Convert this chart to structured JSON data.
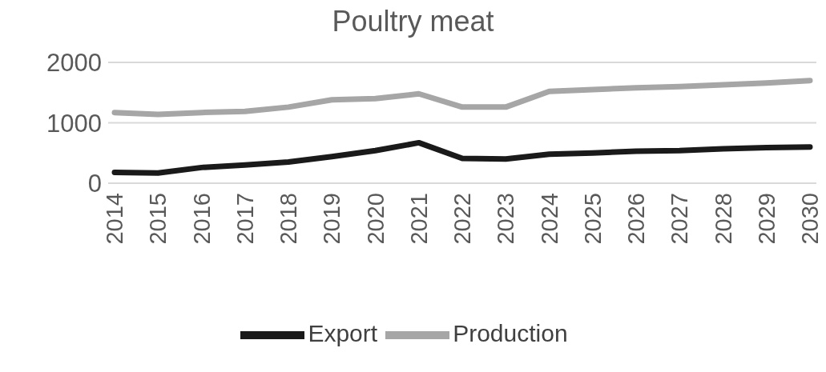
{
  "chart_data": {
    "type": "line",
    "title": "Poultry meat",
    "categories": [
      "2014",
      "2015",
      "2016",
      "2017",
      "2018",
      "2019",
      "2020",
      "2021",
      "2022",
      "2023",
      "2024",
      "2025",
      "2026",
      "2027",
      "2028",
      "2029",
      "2030"
    ],
    "series": [
      {
        "name": "Production",
        "color": "#a6a6a6",
        "values": [
          1170,
          1140,
          1170,
          1190,
          1260,
          1380,
          1400,
          1480,
          1260,
          1260,
          1520,
          1550,
          1580,
          1600,
          1630,
          1660,
          1700
        ]
      },
      {
        "name": "Export",
        "color": "#1a1a1a",
        "values": [
          180,
          170,
          260,
          300,
          350,
          440,
          540,
          670,
          410,
          400,
          480,
          500,
          530,
          540,
          570,
          590,
          600
        ]
      }
    ],
    "ylim": [
      0,
      2000
    ],
    "yticks": [
      0,
      1000,
      2000
    ],
    "grid": "y",
    "legend": "bottom",
    "marker": "none",
    "line_style": "solid"
  }
}
